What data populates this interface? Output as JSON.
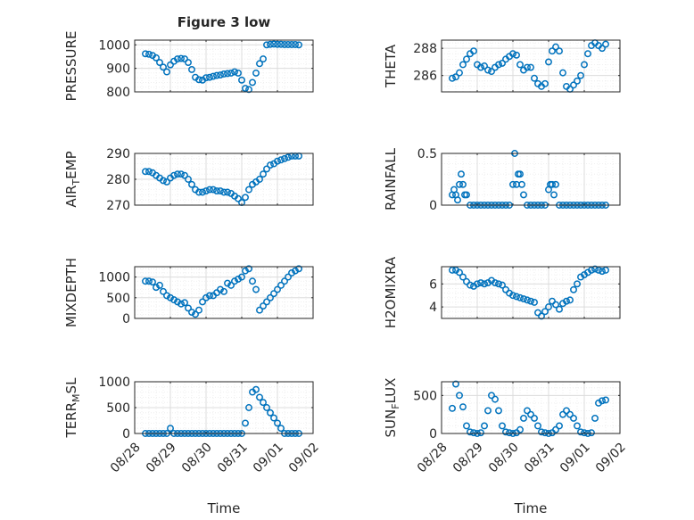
{
  "figure": {
    "title": "Figure 3 low",
    "xlabel": "Time"
  },
  "colors": {
    "marker": "#0072BD",
    "axis": "#262626",
    "grid": "#dcdcdc",
    "minorgrid": "#ebebeb"
  },
  "chart_data": [
    {
      "type": "scatter",
      "title": "Figure 3 low",
      "ylabel": "PRESSURE",
      "ylim": [
        800,
        1020
      ],
      "yticks": [
        800,
        900,
        1000
      ],
      "yticklabels": [
        "800",
        "900",
        "1000"
      ],
      "xlim": [
        0,
        5
      ],
      "xticks": [
        0,
        1,
        2,
        3,
        4,
        5
      ],
      "x": [
        0.3,
        0.4,
        0.5,
        0.6,
        0.7,
        0.8,
        0.9,
        1.0,
        1.1,
        1.2,
        1.3,
        1.4,
        1.5,
        1.6,
        1.7,
        1.8,
        1.9,
        2.0,
        2.1,
        2.2,
        2.3,
        2.4,
        2.5,
        2.6,
        2.7,
        2.8,
        2.9,
        3.0,
        3.1,
        3.2,
        3.3,
        3.4,
        3.5,
        3.6,
        3.7,
        3.8,
        3.9,
        4.0,
        4.1,
        4.2,
        4.3,
        4.4,
        4.5,
        4.6
      ],
      "y": [
        962,
        960,
        955,
        945,
        925,
        905,
        885,
        915,
        930,
        940,
        942,
        940,
        925,
        895,
        862,
        852,
        850,
        860,
        862,
        866,
        870,
        872,
        876,
        878,
        880,
        885,
        880,
        850,
        815,
        810,
        840,
        880,
        920,
        940,
        1000,
        1002,
        1003,
        1002,
        1002,
        1001,
        1001,
        1001,
        1001,
        1000
      ]
    },
    {
      "type": "scatter",
      "ylabel": "THETA",
      "ylim": [
        284.8,
        288.6
      ],
      "yticks": [
        286,
        288
      ],
      "yticklabels": [
        "286",
        "288"
      ],
      "xlim": [
        0,
        5
      ],
      "xticks": [
        0,
        1,
        2,
        3,
        4,
        5
      ],
      "x": [
        0.3,
        0.4,
        0.5,
        0.6,
        0.7,
        0.8,
        0.9,
        1.0,
        1.1,
        1.2,
        1.3,
        1.4,
        1.5,
        1.6,
        1.7,
        1.8,
        1.9,
        2.0,
        2.1,
        2.2,
        2.3,
        2.4,
        2.5,
        2.6,
        2.7,
        2.8,
        2.9,
        3.0,
        3.1,
        3.2,
        3.3,
        3.4,
        3.5,
        3.6,
        3.7,
        3.8,
        3.9,
        4.0,
        4.1,
        4.2,
        4.3,
        4.4,
        4.5,
        4.6
      ],
      "y": [
        285.8,
        285.9,
        286.2,
        286.8,
        287.2,
        287.6,
        287.8,
        286.8,
        286.6,
        286.7,
        286.4,
        286.3,
        286.6,
        286.8,
        286.9,
        287.2,
        287.4,
        287.6,
        287.5,
        286.8,
        286.4,
        286.6,
        286.6,
        285.8,
        285.4,
        285.2,
        285.4,
        287.0,
        287.8,
        288.1,
        287.8,
        286.2,
        285.2,
        285.0,
        285.3,
        285.6,
        286.0,
        286.8,
        287.6,
        288.2,
        288.4,
        288.2,
        288.0,
        288.3
      ]
    },
    {
      "type": "scatter",
      "ylabel": "AIR_TEMP",
      "ylabel_main": "AIR",
      "ylabel_sub": "T",
      "ylabel_rest": "EMP",
      "ylim": [
        270,
        290
      ],
      "yticks": [
        270,
        280,
        290
      ],
      "yticklabels": [
        "270",
        "280",
        "290"
      ],
      "xlim": [
        0,
        5
      ],
      "xticks": [
        0,
        1,
        2,
        3,
        4,
        5
      ],
      "x": [
        0.3,
        0.4,
        0.5,
        0.6,
        0.7,
        0.8,
        0.9,
        1.0,
        1.1,
        1.2,
        1.3,
        1.4,
        1.5,
        1.6,
        1.7,
        1.8,
        1.9,
        2.0,
        2.1,
        2.2,
        2.3,
        2.4,
        2.5,
        2.6,
        2.7,
        2.8,
        2.9,
        3.0,
        3.1,
        3.2,
        3.3,
        3.4,
        3.5,
        3.6,
        3.7,
        3.8,
        3.9,
        4.0,
        4.1,
        4.2,
        4.3,
        4.4,
        4.5,
        4.6
      ],
      "y": [
        283,
        283,
        282.5,
        281.5,
        280.5,
        279.5,
        279,
        280.5,
        281.5,
        282,
        282,
        281.5,
        280,
        278,
        276,
        275,
        275,
        275.5,
        276,
        276,
        275.5,
        275.5,
        275,
        275,
        274.5,
        273.5,
        272.5,
        271,
        273,
        276,
        278,
        279,
        280,
        282,
        284,
        285.5,
        286,
        287,
        287.5,
        288,
        288.5,
        289,
        289,
        289
      ]
    },
    {
      "type": "scatter",
      "ylabel": "RAINFALL",
      "ylim": [
        0,
        0.5
      ],
      "yticks": [
        0,
        0.5
      ],
      "yticklabels": [
        "0",
        "0.5"
      ],
      "xlim": [
        0,
        5
      ],
      "xticks": [
        0,
        1,
        2,
        3,
        4,
        5
      ],
      "x": [
        0.3,
        0.35,
        0.4,
        0.45,
        0.5,
        0.55,
        0.6,
        0.65,
        0.7,
        0.8,
        0.9,
        1.0,
        1.1,
        1.2,
        1.3,
        1.4,
        1.5,
        1.6,
        1.7,
        1.8,
        1.9,
        2.0,
        2.05,
        2.1,
        2.15,
        2.2,
        2.25,
        2.3,
        2.4,
        2.5,
        2.6,
        2.7,
        2.8,
        2.9,
        3.0,
        3.05,
        3.1,
        3.15,
        3.2,
        3.3,
        3.4,
        3.5,
        3.6,
        3.7,
        3.8,
        3.9,
        4.0,
        4.1,
        4.2,
        4.3,
        4.4,
        4.5,
        4.6
      ],
      "y": [
        0.1,
        0.15,
        0.1,
        0.05,
        0.2,
        0.3,
        0.2,
        0.1,
        0.1,
        0,
        0,
        0,
        0,
        0,
        0,
        0,
        0,
        0,
        0,
        0,
        0,
        0.2,
        0.5,
        0.2,
        0.3,
        0.3,
        0.2,
        0.1,
        0,
        0,
        0,
        0,
        0,
        0,
        0.15,
        0.2,
        0.2,
        0.1,
        0.2,
        0,
        0,
        0,
        0,
        0,
        0,
        0,
        0,
        0,
        0,
        0,
        0,
        0,
        0
      ]
    },
    {
      "type": "scatter",
      "ylabel": "MIXDEPTH",
      "ylim": [
        0,
        1250
      ],
      "yticks": [
        0,
        500,
        1000
      ],
      "yticklabels": [
        "0",
        "500",
        "1000"
      ],
      "xlim": [
        0,
        5
      ],
      "xticks": [
        0,
        1,
        2,
        3,
        4,
        5
      ],
      "x": [
        0.3,
        0.4,
        0.5,
        0.6,
        0.7,
        0.8,
        0.9,
        1.0,
        1.1,
        1.2,
        1.3,
        1.4,
        1.5,
        1.6,
        1.7,
        1.8,
        1.9,
        2.0,
        2.1,
        2.2,
        2.3,
        2.4,
        2.5,
        2.6,
        2.7,
        2.8,
        2.9,
        3.0,
        3.1,
        3.2,
        3.3,
        3.4,
        3.5,
        3.6,
        3.7,
        3.8,
        3.9,
        4.0,
        4.1,
        4.2,
        4.3,
        4.4,
        4.5,
        4.6
      ],
      "y": [
        900,
        900,
        880,
        750,
        800,
        650,
        550,
        500,
        450,
        400,
        350,
        380,
        250,
        150,
        100,
        200,
        400,
        500,
        550,
        550,
        620,
        700,
        650,
        850,
        800,
        900,
        950,
        1000,
        1150,
        1200,
        900,
        700,
        200,
        300,
        400,
        500,
        600,
        700,
        800,
        900,
        1000,
        1100,
        1150,
        1200
      ]
    },
    {
      "type": "scatter",
      "ylabel": "H2OMIXRA",
      "ylim": [
        3,
        7.5
      ],
      "yticks": [
        4,
        6
      ],
      "yticklabels": [
        "4",
        "6"
      ],
      "xlim": [
        0,
        5
      ],
      "xticks": [
        0,
        1,
        2,
        3,
        4,
        5
      ],
      "x": [
        0.3,
        0.4,
        0.5,
        0.6,
        0.7,
        0.8,
        0.9,
        1.0,
        1.1,
        1.2,
        1.3,
        1.4,
        1.5,
        1.6,
        1.7,
        1.8,
        1.9,
        2.0,
        2.1,
        2.2,
        2.3,
        2.4,
        2.5,
        2.6,
        2.7,
        2.8,
        2.9,
        3.0,
        3.1,
        3.2,
        3.3,
        3.4,
        3.5,
        3.6,
        3.7,
        3.8,
        3.9,
        4.0,
        4.1,
        4.2,
        4.3,
        4.4,
        4.5,
        4.6
      ],
      "y": [
        7.2,
        7.2,
        7.0,
        6.6,
        6.2,
        5.9,
        5.8,
        6.0,
        6.1,
        6.0,
        6.1,
        6.3,
        6.1,
        6.0,
        5.9,
        5.5,
        5.2,
        5.0,
        4.9,
        4.8,
        4.7,
        4.6,
        4.5,
        4.4,
        3.5,
        3.2,
        3.6,
        4.0,
        4.5,
        4.2,
        3.8,
        4.3,
        4.5,
        4.6,
        5.5,
        6.0,
        6.6,
        6.8,
        7.0,
        7.2,
        7.3,
        7.2,
        7.1,
        7.2
      ]
    },
    {
      "type": "scatter",
      "ylabel": "TERR_MSL",
      "ylabel_main": "TERR",
      "ylabel_sub": "M",
      "ylabel_rest": "SL",
      "ylim": [
        0,
        1000
      ],
      "yticks": [
        0,
        500,
        1000
      ],
      "yticklabels": [
        "0",
        "500",
        "1000"
      ],
      "xlim": [
        0,
        5
      ],
      "xticks": [
        0,
        1,
        2,
        3,
        4,
        5
      ],
      "xticklabels": [
        "08/28",
        "08/29",
        "08/30",
        "08/31",
        "09/01",
        "09/02"
      ],
      "x": [
        0.3,
        0.4,
        0.5,
        0.6,
        0.7,
        0.8,
        0.9,
        1.0,
        1.1,
        1.2,
        1.3,
        1.4,
        1.5,
        1.6,
        1.7,
        1.8,
        1.9,
        2.0,
        2.1,
        2.2,
        2.3,
        2.4,
        2.5,
        2.6,
        2.7,
        2.8,
        2.9,
        3.0,
        3.1,
        3.2,
        3.3,
        3.4,
        3.5,
        3.6,
        3.7,
        3.8,
        3.9,
        4.0,
        4.1,
        4.2,
        4.3,
        4.4,
        4.5,
        4.6
      ],
      "y": [
        0,
        0,
        0,
        0,
        0,
        0,
        0,
        100,
        0,
        0,
        0,
        0,
        0,
        0,
        0,
        0,
        0,
        0,
        0,
        0,
        0,
        0,
        0,
        0,
        0,
        0,
        0,
        0,
        200,
        500,
        800,
        850,
        700,
        600,
        500,
        400,
        300,
        200,
        100,
        0,
        0,
        0,
        0,
        0
      ]
    },
    {
      "type": "scatter",
      "ylabel": "SUN_FLUX",
      "ylabel_main": "SUN",
      "ylabel_sub": "F",
      "ylabel_rest": "LUX",
      "ylim": [
        0,
        680
      ],
      "yticks": [
        0,
        500
      ],
      "yticklabels": [
        "0",
        "500"
      ],
      "xlim": [
        0,
        5
      ],
      "xticks": [
        0,
        1,
        2,
        3,
        4,
        5
      ],
      "xticklabels": [
        "08/28",
        "08/29",
        "08/30",
        "08/31",
        "09/01",
        "09/02"
      ],
      "x": [
        0.3,
        0.4,
        0.5,
        0.6,
        0.7,
        0.8,
        0.9,
        1.0,
        1.1,
        1.2,
        1.3,
        1.4,
        1.5,
        1.6,
        1.7,
        1.8,
        1.9,
        2.0,
        2.1,
        2.2,
        2.3,
        2.4,
        2.5,
        2.6,
        2.7,
        2.8,
        2.9,
        3.0,
        3.1,
        3.2,
        3.3,
        3.4,
        3.5,
        3.6,
        3.7,
        3.8,
        3.9,
        4.0,
        4.1,
        4.2,
        4.3,
        4.4,
        4.5,
        4.6
      ],
      "y": [
        330,
        650,
        500,
        350,
        100,
        20,
        10,
        0,
        10,
        100,
        300,
        500,
        450,
        300,
        100,
        20,
        10,
        0,
        10,
        50,
        200,
        300,
        250,
        200,
        100,
        20,
        10,
        0,
        10,
        50,
        100,
        250,
        300,
        250,
        200,
        100,
        20,
        10,
        0,
        10,
        200,
        400,
        430,
        440
      ]
    }
  ]
}
